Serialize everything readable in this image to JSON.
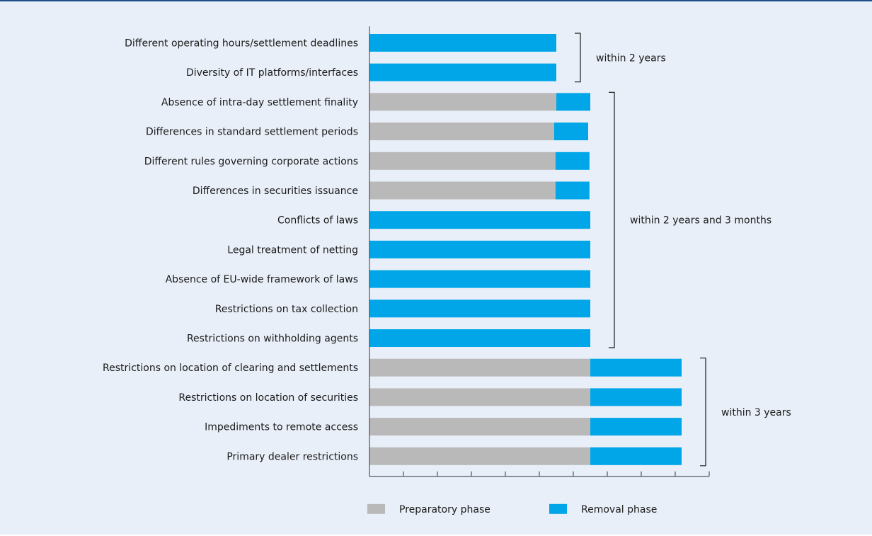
{
  "chart_data": {
    "type": "bar",
    "orientation": "horizontal",
    "stacked": true,
    "categories": [
      "Different operating hours/settlement deadlines",
      "Diversity of IT platforms/interfaces",
      "Absence of intra-day settlement finality",
      "Differences in standard settlement periods",
      "Different rules governing corporate actions",
      "Differences in securities issuance",
      "Conflicts of laws",
      "Legal treatment of netting",
      "Absence of EU-wide framework of laws",
      "Restrictions on tax collection",
      "Restrictions on withholding agents",
      "Restrictions on location of clearing and settlements",
      "Restrictions on location of securities",
      "Impediments to remote access",
      "Primary dealer restrictions"
    ],
    "series": [
      {
        "name": "Preparatory phase",
        "color": "#b9b9b9",
        "values": [
          0,
          0,
          22,
          21.75,
          21.9,
          21.9,
          0,
          0,
          0,
          0,
          0,
          26,
          26,
          26,
          26
        ]
      },
      {
        "name": "Removal phase",
        "color": "#00a6e8",
        "values": [
          22,
          22,
          4,
          4,
          4,
          4,
          26,
          26,
          26,
          26,
          26,
          10.75,
          10.75,
          10.75,
          10.75
        ]
      }
    ],
    "xlim": [
      0,
      40
    ],
    "x_ticks": 10,
    "xlabel": "",
    "ylabel": "",
    "groups": [
      {
        "label": "within 2 years",
        "from": 0,
        "to": 1
      },
      {
        "label": "within 2 years and 3 months",
        "from": 2,
        "to": 10
      },
      {
        "label": "within 3 years",
        "from": 11,
        "to": 14
      }
    ],
    "legend_position": "bottom"
  }
}
